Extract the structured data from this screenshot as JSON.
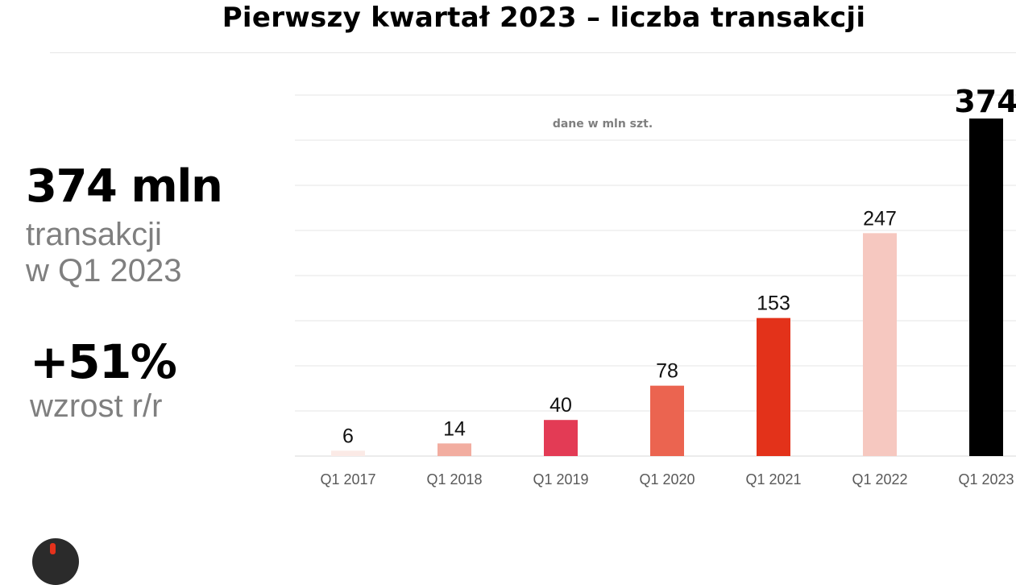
{
  "title": "Pierwszy kwartał 2023 – liczba transakcji",
  "kpi": {
    "value": "374 mln",
    "label_line1": "transakcji",
    "label_line2": "w Q1 2023",
    "growth_value": "+51%",
    "growth_label": "wzrost r/r"
  },
  "chart_data": {
    "type": "bar",
    "title": "Pierwszy kwartał 2023 – liczba transakcji",
    "unit_note": "dane w mln szt.",
    "categories": [
      "Q1 2017",
      "Q1 2018",
      "Q1 2019",
      "Q1 2020",
      "Q1 2021",
      "Q1 2022",
      "Q1 2023"
    ],
    "values": [
      6,
      14,
      40,
      78,
      153,
      247,
      374
    ],
    "value_labels": [
      "6",
      "14",
      "40",
      "78",
      "153",
      "247",
      "374"
    ],
    "colors": [
      "#fbeae6",
      "#f2ada0",
      "#e33b55",
      "#eb6450",
      "#e3321a",
      "#f6c8c0",
      "#000000"
    ],
    "grid_color": "#e6e6e6",
    "ylim": [
      0,
      400
    ],
    "xlabel": "",
    "ylabel": "",
    "grid": true
  },
  "colors": {
    "gray_text": "#7f7f7f",
    "accent": "#e3321a"
  },
  "logo": {
    "icon": "brand-logo-icon"
  }
}
